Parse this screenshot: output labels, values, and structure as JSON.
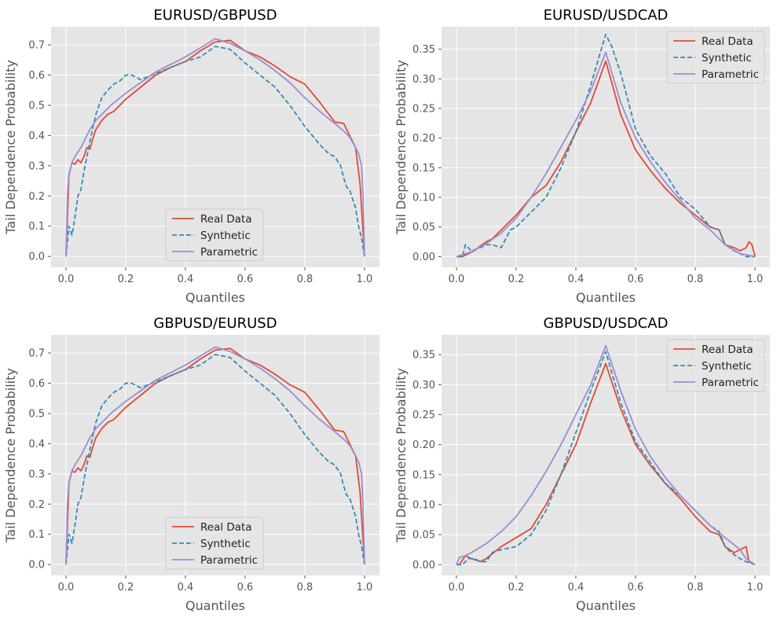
{
  "colors": {
    "real": "#E24A33",
    "synthetic": "#348ABD",
    "parametric": "#988ED5",
    "panel_bg": "#E5E5E5",
    "grid": "#FFFFFF"
  },
  "chart_data": [
    {
      "type": "line",
      "title": "EURUSD/GBPUSD",
      "xlabel": "Quantiles",
      "ylabel": "Tail Dependence Probability",
      "xlim": [
        -0.05,
        1.05
      ],
      "ylim": [
        -0.036,
        0.76
      ],
      "xticks": [
        0.0,
        0.2,
        0.4,
        0.6,
        0.8,
        1.0
      ],
      "xtick_labels": [
        "0.0",
        "0.2",
        "0.4",
        "0.6",
        "0.8",
        "1.0"
      ],
      "yticks": [
        0.0,
        0.1,
        0.2,
        0.3,
        0.4,
        0.5,
        0.6,
        0.7
      ],
      "ytick_labels": [
        "0.0",
        "0.1",
        "0.2",
        "0.3",
        "0.4",
        "0.5",
        "0.6",
        "0.7"
      ],
      "grid": true,
      "legend_position": "lower-center",
      "series": [
        {
          "name": "Real Data",
          "style": "solid",
          "x": [
            0.0,
            0.01,
            0.02,
            0.03,
            0.04,
            0.05,
            0.06,
            0.07,
            0.08,
            0.09,
            0.1,
            0.12,
            0.14,
            0.16,
            0.2,
            0.25,
            0.3,
            0.35,
            0.4,
            0.45,
            0.5,
            0.55,
            0.6,
            0.65,
            0.7,
            0.75,
            0.8,
            0.85,
            0.9,
            0.93,
            0.95,
            0.97,
            0.985,
            1.0
          ],
          "y": [
            0.0,
            0.27,
            0.31,
            0.305,
            0.32,
            0.31,
            0.33,
            0.36,
            0.355,
            0.39,
            0.42,
            0.45,
            0.47,
            0.48,
            0.52,
            0.56,
            0.6,
            0.625,
            0.645,
            0.68,
            0.71,
            0.715,
            0.68,
            0.66,
            0.63,
            0.595,
            0.57,
            0.51,
            0.445,
            0.44,
            0.4,
            0.36,
            0.24,
            0.0
          ]
        },
        {
          "name": "Synthetic",
          "style": "dashed",
          "x": [
            0.0,
            0.01,
            0.02,
            0.03,
            0.04,
            0.05,
            0.06,
            0.08,
            0.1,
            0.12,
            0.14,
            0.16,
            0.18,
            0.2,
            0.22,
            0.25,
            0.3,
            0.35,
            0.4,
            0.45,
            0.5,
            0.55,
            0.6,
            0.65,
            0.7,
            0.75,
            0.8,
            0.85,
            0.88,
            0.9,
            0.92,
            0.93,
            0.94,
            0.95,
            0.96,
            0.97,
            0.98,
            0.99,
            1.0
          ],
          "y": [
            0.0,
            0.1,
            0.07,
            0.13,
            0.2,
            0.22,
            0.28,
            0.38,
            0.47,
            0.525,
            0.55,
            0.57,
            0.58,
            0.6,
            0.6,
            0.585,
            0.605,
            0.625,
            0.645,
            0.66,
            0.695,
            0.685,
            0.64,
            0.6,
            0.56,
            0.5,
            0.43,
            0.37,
            0.34,
            0.33,
            0.3,
            0.26,
            0.23,
            0.22,
            0.19,
            0.16,
            0.1,
            0.06,
            0.0
          ]
        },
        {
          "name": "Parametric",
          "style": "solid",
          "x": [
            0.0,
            0.005,
            0.01,
            0.02,
            0.03,
            0.05,
            0.08,
            0.1,
            0.15,
            0.2,
            0.25,
            0.3,
            0.35,
            0.4,
            0.45,
            0.5,
            0.55,
            0.6,
            0.65,
            0.7,
            0.75,
            0.8,
            0.85,
            0.9,
            0.93,
            0.95,
            0.97,
            0.98,
            0.99,
            0.995,
            1.0
          ],
          "y": [
            0.0,
            0.2,
            0.27,
            0.31,
            0.33,
            0.36,
            0.42,
            0.45,
            0.5,
            0.54,
            0.575,
            0.61,
            0.635,
            0.66,
            0.69,
            0.72,
            0.705,
            0.68,
            0.65,
            0.615,
            0.575,
            0.525,
            0.48,
            0.44,
            0.415,
            0.395,
            0.36,
            0.34,
            0.3,
            0.2,
            0.0
          ]
        }
      ]
    },
    {
      "type": "line",
      "title": "EURUSD/USDCAD",
      "xlabel": "Quantiles",
      "ylabel": "Tail Dependence Probability",
      "xlim": [
        -0.05,
        1.05
      ],
      "ylim": [
        -0.018,
        0.388
      ],
      "xticks": [
        0.0,
        0.2,
        0.4,
        0.6,
        0.8,
        1.0
      ],
      "xtick_labels": [
        "0.0",
        "0.2",
        "0.4",
        "0.6",
        "0.8",
        "1.0"
      ],
      "yticks": [
        0.0,
        0.05,
        0.1,
        0.15,
        0.2,
        0.25,
        0.3,
        0.35
      ],
      "ytick_labels": [
        "0.00",
        "0.05",
        "0.10",
        "0.15",
        "0.20",
        "0.25",
        "0.30",
        "0.35"
      ],
      "grid": true,
      "legend_position": "upper-right",
      "series": [
        {
          "name": "Real Data",
          "style": "solid",
          "x": [
            0.0,
            0.02,
            0.04,
            0.06,
            0.08,
            0.1,
            0.12,
            0.15,
            0.2,
            0.25,
            0.3,
            0.35,
            0.4,
            0.45,
            0.5,
            0.55,
            0.6,
            0.65,
            0.7,
            0.75,
            0.8,
            0.85,
            0.88,
            0.9,
            0.93,
            0.95,
            0.97,
            0.98,
            0.99,
            1.0
          ],
          "y": [
            0.0,
            0.0,
            0.005,
            0.01,
            0.018,
            0.025,
            0.03,
            0.045,
            0.07,
            0.1,
            0.12,
            0.16,
            0.21,
            0.26,
            0.33,
            0.24,
            0.18,
            0.145,
            0.115,
            0.09,
            0.07,
            0.05,
            0.045,
            0.02,
            0.015,
            0.01,
            0.015,
            0.025,
            0.02,
            0.0
          ]
        },
        {
          "name": "Synthetic",
          "style": "dashed",
          "x": [
            0.0,
            0.02,
            0.03,
            0.05,
            0.08,
            0.1,
            0.12,
            0.15,
            0.18,
            0.2,
            0.25,
            0.3,
            0.35,
            0.4,
            0.45,
            0.5,
            0.52,
            0.55,
            0.6,
            0.65,
            0.7,
            0.75,
            0.8,
            0.85,
            0.88,
            0.9,
            0.93,
            0.95,
            0.97,
            1.0
          ],
          "y": [
            0.0,
            0.0,
            0.02,
            0.01,
            0.015,
            0.02,
            0.02,
            0.015,
            0.045,
            0.05,
            0.075,
            0.1,
            0.15,
            0.21,
            0.29,
            0.375,
            0.355,
            0.31,
            0.215,
            0.17,
            0.14,
            0.1,
            0.08,
            0.05,
            0.045,
            0.02,
            0.01,
            0.005,
            0.0,
            0.0
          ]
        },
        {
          "name": "Parametric",
          "style": "solid",
          "x": [
            0.0,
            0.05,
            0.1,
            0.15,
            0.2,
            0.25,
            0.3,
            0.35,
            0.4,
            0.45,
            0.5,
            0.55,
            0.6,
            0.65,
            0.7,
            0.75,
            0.8,
            0.85,
            0.9,
            0.95,
            1.0
          ],
          "y": [
            0.0,
            0.008,
            0.022,
            0.04,
            0.065,
            0.1,
            0.14,
            0.185,
            0.23,
            0.28,
            0.345,
            0.26,
            0.2,
            0.16,
            0.125,
            0.095,
            0.065,
            0.045,
            0.02,
            0.005,
            0.0
          ]
        }
      ]
    },
    {
      "type": "line",
      "title": "GBPUSD/EURUSD",
      "xlabel": "Quantiles",
      "ylabel": "Tail Dependence Probability",
      "xlim": [
        -0.05,
        1.05
      ],
      "ylim": [
        -0.036,
        0.76
      ],
      "xticks": [
        0.0,
        0.2,
        0.4,
        0.6,
        0.8,
        1.0
      ],
      "xtick_labels": [
        "0.0",
        "0.2",
        "0.4",
        "0.6",
        "0.8",
        "1.0"
      ],
      "yticks": [
        0.0,
        0.1,
        0.2,
        0.3,
        0.4,
        0.5,
        0.6,
        0.7
      ],
      "ytick_labels": [
        "0.0",
        "0.1",
        "0.2",
        "0.3",
        "0.4",
        "0.5",
        "0.6",
        "0.7"
      ],
      "grid": true,
      "legend_position": "lower-center",
      "series": [
        {
          "name": "Real Data",
          "style": "solid",
          "x": [
            0.0,
            0.01,
            0.02,
            0.03,
            0.04,
            0.05,
            0.06,
            0.07,
            0.08,
            0.09,
            0.1,
            0.12,
            0.14,
            0.16,
            0.2,
            0.25,
            0.3,
            0.35,
            0.4,
            0.45,
            0.5,
            0.55,
            0.6,
            0.65,
            0.7,
            0.75,
            0.8,
            0.85,
            0.9,
            0.93,
            0.95,
            0.97,
            0.985,
            1.0
          ],
          "y": [
            0.0,
            0.27,
            0.31,
            0.305,
            0.32,
            0.31,
            0.33,
            0.36,
            0.355,
            0.39,
            0.42,
            0.45,
            0.47,
            0.48,
            0.52,
            0.56,
            0.6,
            0.625,
            0.645,
            0.68,
            0.71,
            0.715,
            0.68,
            0.66,
            0.63,
            0.595,
            0.57,
            0.51,
            0.445,
            0.44,
            0.4,
            0.36,
            0.24,
            0.0
          ]
        },
        {
          "name": "Synthetic",
          "style": "dashed",
          "x": [
            0.0,
            0.01,
            0.02,
            0.03,
            0.04,
            0.05,
            0.06,
            0.08,
            0.1,
            0.12,
            0.14,
            0.16,
            0.18,
            0.2,
            0.22,
            0.25,
            0.3,
            0.35,
            0.4,
            0.45,
            0.5,
            0.55,
            0.6,
            0.65,
            0.7,
            0.75,
            0.8,
            0.85,
            0.88,
            0.9,
            0.92,
            0.93,
            0.94,
            0.95,
            0.96,
            0.97,
            0.98,
            0.99,
            1.0
          ],
          "y": [
            0.0,
            0.1,
            0.07,
            0.13,
            0.2,
            0.22,
            0.28,
            0.38,
            0.47,
            0.525,
            0.55,
            0.57,
            0.58,
            0.6,
            0.6,
            0.585,
            0.605,
            0.625,
            0.645,
            0.66,
            0.695,
            0.685,
            0.64,
            0.6,
            0.56,
            0.5,
            0.43,
            0.37,
            0.34,
            0.33,
            0.3,
            0.26,
            0.23,
            0.22,
            0.19,
            0.16,
            0.1,
            0.06,
            0.0
          ]
        },
        {
          "name": "Parametric",
          "style": "solid",
          "x": [
            0.0,
            0.005,
            0.01,
            0.02,
            0.03,
            0.05,
            0.08,
            0.1,
            0.15,
            0.2,
            0.25,
            0.3,
            0.35,
            0.4,
            0.45,
            0.5,
            0.55,
            0.6,
            0.65,
            0.7,
            0.75,
            0.8,
            0.85,
            0.9,
            0.93,
            0.95,
            0.97,
            0.98,
            0.99,
            0.995,
            1.0
          ],
          "y": [
            0.0,
            0.2,
            0.27,
            0.31,
            0.33,
            0.36,
            0.42,
            0.45,
            0.5,
            0.54,
            0.575,
            0.61,
            0.635,
            0.66,
            0.69,
            0.72,
            0.705,
            0.68,
            0.65,
            0.615,
            0.575,
            0.525,
            0.48,
            0.44,
            0.415,
            0.395,
            0.36,
            0.34,
            0.3,
            0.2,
            0.0
          ]
        }
      ]
    },
    {
      "type": "line",
      "title": "GBPUSD/USDCAD",
      "xlabel": "Quantiles",
      "ylabel": "Tail Dependence Probability",
      "xlim": [
        -0.05,
        1.05
      ],
      "ylim": [
        -0.018,
        0.383
      ],
      "xticks": [
        0.0,
        0.2,
        0.4,
        0.6,
        0.8,
        1.0
      ],
      "xtick_labels": [
        "0.0",
        "0.2",
        "0.4",
        "0.6",
        "0.8",
        "1.0"
      ],
      "yticks": [
        0.0,
        0.05,
        0.1,
        0.15,
        0.2,
        0.25,
        0.3,
        0.35
      ],
      "ytick_labels": [
        "0.00",
        "0.05",
        "0.10",
        "0.15",
        "0.20",
        "0.25",
        "0.30",
        "0.35"
      ],
      "grid": true,
      "legend_position": "upper-right",
      "series": [
        {
          "name": "Real Data",
          "style": "solid",
          "x": [
            0.0,
            0.01,
            0.03,
            0.05,
            0.08,
            0.1,
            0.15,
            0.2,
            0.25,
            0.3,
            0.35,
            0.4,
            0.45,
            0.5,
            0.55,
            0.6,
            0.65,
            0.7,
            0.75,
            0.8,
            0.85,
            0.88,
            0.9,
            0.93,
            0.95,
            0.97,
            0.98,
            1.0
          ],
          "y": [
            0.0,
            0.0,
            0.015,
            0.01,
            0.005,
            0.01,
            0.03,
            0.045,
            0.06,
            0.1,
            0.15,
            0.2,
            0.27,
            0.335,
            0.26,
            0.2,
            0.165,
            0.135,
            0.11,
            0.08,
            0.055,
            0.05,
            0.03,
            0.02,
            0.025,
            0.03,
            0.005,
            0.0
          ]
        },
        {
          "name": "Synthetic",
          "style": "dashed",
          "x": [
            0.0,
            0.02,
            0.04,
            0.06,
            0.08,
            0.1,
            0.12,
            0.15,
            0.2,
            0.25,
            0.3,
            0.35,
            0.4,
            0.45,
            0.5,
            0.55,
            0.6,
            0.65,
            0.7,
            0.75,
            0.8,
            0.85,
            0.88,
            0.9,
            0.92,
            0.95,
            0.97,
            1.0
          ],
          "y": [
            0.0,
            0.0,
            0.01,
            0.01,
            0.005,
            0.005,
            0.02,
            0.025,
            0.03,
            0.05,
            0.09,
            0.15,
            0.22,
            0.29,
            0.355,
            0.27,
            0.205,
            0.17,
            0.135,
            0.115,
            0.09,
            0.065,
            0.055,
            0.03,
            0.02,
            0.01,
            0.005,
            0.0
          ]
        },
        {
          "name": "Parametric",
          "style": "solid",
          "x": [
            0.0,
            0.01,
            0.03,
            0.05,
            0.1,
            0.15,
            0.2,
            0.25,
            0.3,
            0.35,
            0.4,
            0.45,
            0.5,
            0.55,
            0.6,
            0.65,
            0.7,
            0.75,
            0.8,
            0.85,
            0.9,
            0.95,
            0.97,
            1.0
          ],
          "y": [
            0.0,
            0.012,
            0.015,
            0.02,
            0.035,
            0.055,
            0.08,
            0.115,
            0.155,
            0.2,
            0.25,
            0.3,
            0.365,
            0.29,
            0.225,
            0.18,
            0.145,
            0.115,
            0.09,
            0.065,
            0.045,
            0.025,
            0.01,
            0.0
          ]
        }
      ]
    }
  ]
}
